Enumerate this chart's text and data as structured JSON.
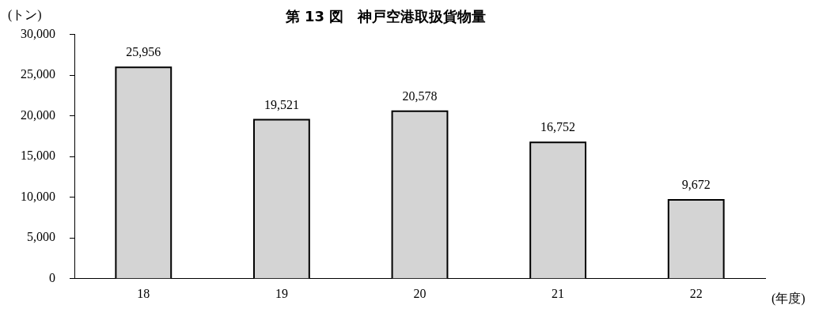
{
  "chart_data": {
    "type": "bar",
    "title": "第 13 図　神戸空港取扱貨物量",
    "ylabel": "(トン)",
    "xlabel": "(年度)",
    "categories": [
      "18",
      "19",
      "20",
      "21",
      "22"
    ],
    "values": [
      25956,
      19521,
      20578,
      16752,
      9672
    ],
    "color": "#d4d4d4",
    "ylim": [
      0,
      30000
    ],
    "yticks": [
      {
        "value": 0,
        "label": "0"
      },
      {
        "value": 5000,
        "label": "5,000"
      },
      {
        "value": 10000,
        "label": "10,000"
      },
      {
        "value": 15000,
        "label": "15,000"
      },
      {
        "value": 20000,
        "label": "20,000"
      },
      {
        "value": 25000,
        "label": "25,000"
      },
      {
        "value": 30000,
        "label": "30,000"
      }
    ],
    "value_labels": [
      "25,956",
      "19,521",
      "20,578",
      "16,752",
      "9,672"
    ],
    "grid": false,
    "legend": false
  }
}
